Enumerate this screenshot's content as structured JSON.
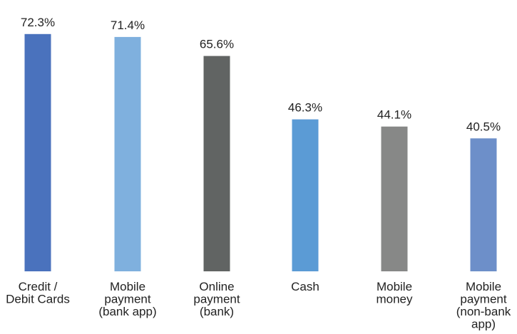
{
  "chart_data": {
    "type": "bar",
    "categories": [
      [
        "Credit /",
        "Debit Cards"
      ],
      [
        "Mobile",
        "payment",
        "(bank app)"
      ],
      [
        "Online",
        "payment",
        "(bank)"
      ],
      [
        "Cash"
      ],
      [
        "Mobile",
        "money"
      ],
      [
        "Mobile",
        "payment",
        "(non-bank",
        "app)"
      ]
    ],
    "values": [
      72.3,
      71.4,
      65.6,
      46.3,
      44.1,
      40.5
    ],
    "value_labels": [
      "72.3%",
      "71.4%",
      "65.6%",
      "46.3%",
      "44.1%",
      "40.5%"
    ],
    "colors": [
      "#4a72bd",
      "#7fb0de",
      "#616463",
      "#5b9bd5",
      "#878887",
      "#6d8fc9"
    ],
    "ylim": [
      0,
      80
    ],
    "title": "",
    "xlabel": "",
    "ylabel": "",
    "grid": false
  }
}
